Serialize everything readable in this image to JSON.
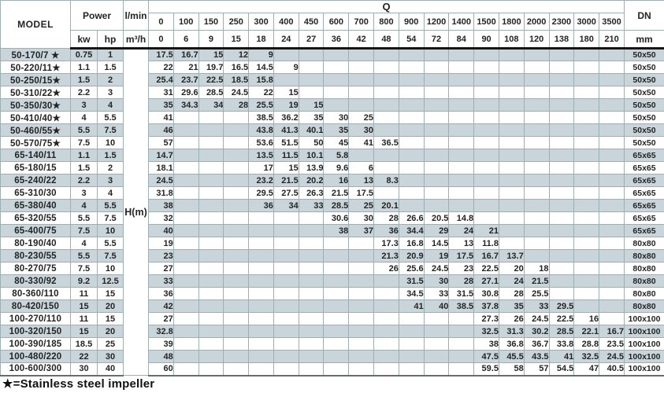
{
  "header": {
    "model": "MODEL",
    "power": "Power",
    "kw": "kw",
    "hp": "hp",
    "lmin": "l/min",
    "m3h": "m³/h",
    "q": "Q",
    "dn": "DN",
    "mm": "mm",
    "hm": "H(m)",
    "lmin_cols": [
      "0",
      "100",
      "150",
      "250",
      "300",
      "400",
      "450",
      "600",
      "700",
      "800",
      "900",
      "1200",
      "1400",
      "1500",
      "1800",
      "2000",
      "2300",
      "3000",
      "3500"
    ],
    "m3h_cols": [
      "0",
      "6",
      "9",
      "15",
      "18",
      "24",
      "27",
      "36",
      "42",
      "48",
      "54",
      "72",
      "84",
      "90",
      "108",
      "120",
      "138",
      "180",
      "210"
    ]
  },
  "rows": [
    {
      "model": "50-170/7 ★",
      "kw": "0.75",
      "hp": "1",
      "dn": "50x50",
      "values": [
        "17.5",
        "16.7",
        "15",
        "12",
        "9",
        "",
        "",
        "",
        "",
        "",
        "",
        "",
        "",
        "",
        "",
        "",
        "",
        "",
        ""
      ]
    },
    {
      "model": "50-220/11★",
      "kw": "1.1",
      "hp": "1.5",
      "dn": "50x50",
      "values": [
        "22",
        "21",
        "19.7",
        "16.5",
        "14.5",
        "9",
        "",
        "",
        "",
        "",
        "",
        "",
        "",
        "",
        "",
        "",
        "",
        "",
        ""
      ]
    },
    {
      "model": "50-250/15★",
      "kw": "1.5",
      "hp": "2",
      "dn": "50x50",
      "values": [
        "25.4",
        "23.7",
        "22.5",
        "18.5",
        "15.8",
        "",
        "",
        "",
        "",
        "",
        "",
        "",
        "",
        "",
        "",
        "",
        "",
        "",
        ""
      ]
    },
    {
      "model": "50-310/22★",
      "kw": "2.2",
      "hp": "3",
      "dn": "50x50",
      "values": [
        "31",
        "29.6",
        "28.5",
        "24.5",
        "22",
        "15",
        "",
        "",
        "",
        "",
        "",
        "",
        "",
        "",
        "",
        "",
        "",
        "",
        ""
      ]
    },
    {
      "model": "50-350/30★",
      "kw": "3",
      "hp": "4",
      "dn": "50x50",
      "values": [
        "35",
        "34.3",
        "34",
        "28",
        "25.5",
        "19",
        "15",
        "",
        "",
        "",
        "",
        "",
        "",
        "",
        "",
        "",
        "",
        "",
        ""
      ]
    },
    {
      "model": "50-410/40★",
      "kw": "4",
      "hp": "5.5",
      "dn": "50x50",
      "values": [
        "41",
        "",
        "",
        "",
        "38.5",
        "36.2",
        "35",
        "30",
        "25",
        "",
        "",
        "",
        "",
        "",
        "",
        "",
        "",
        "",
        ""
      ]
    },
    {
      "model": "50-460/55★",
      "kw": "5.5",
      "hp": "7.5",
      "dn": "50x50",
      "values": [
        "46",
        "",
        "",
        "",
        "43.8",
        "41.3",
        "40.1",
        "35",
        "30",
        "",
        "",
        "",
        "",
        "",
        "",
        "",
        "",
        "",
        ""
      ]
    },
    {
      "model": "50-570/75★",
      "kw": "7.5",
      "hp": "10",
      "dn": "50x50",
      "values": [
        "57",
        "",
        "",
        "",
        "53.6",
        "51.5",
        "50",
        "45",
        "41",
        "36.5",
        "",
        "",
        "",
        "",
        "",
        "",
        "",
        "",
        ""
      ]
    },
    {
      "model": "65-140/11",
      "kw": "1.1",
      "hp": "1.5",
      "dn": "65x65",
      "values": [
        "14.7",
        "",
        "",
        "",
        "13.5",
        "11.5",
        "10.1",
        "5.8",
        "",
        "",
        "",
        "",
        "",
        "",
        "",
        "",
        "",
        "",
        ""
      ]
    },
    {
      "model": "65-180/15",
      "kw": "1.5",
      "hp": "2",
      "dn": "65x65",
      "values": [
        "18.1",
        "",
        "",
        "",
        "17",
        "15",
        "13.9",
        "9.6",
        "6",
        "",
        "",
        "",
        "",
        "",
        "",
        "",
        "",
        "",
        ""
      ]
    },
    {
      "model": "65-240/22",
      "kw": "2.2",
      "hp": "3",
      "dn": "65x65",
      "values": [
        "24.5",
        "",
        "",
        "",
        "23.2",
        "21.5",
        "20.2",
        "16",
        "13",
        "8.3",
        "",
        "",
        "",
        "",
        "",
        "",
        "",
        "",
        ""
      ]
    },
    {
      "model": "65-310/30",
      "kw": "3",
      "hp": "4",
      "dn": "65x65",
      "values": [
        "31.8",
        "",
        "",
        "",
        "29.5",
        "27.5",
        "26.3",
        "21.5",
        "17.5",
        "",
        "",
        "",
        "",
        "",
        "",
        "",
        "",
        "",
        ""
      ]
    },
    {
      "model": "65-380/40",
      "kw": "4",
      "hp": "5.5",
      "dn": "65x65",
      "values": [
        "38",
        "",
        "",
        "",
        "36",
        "34",
        "33",
        "28.5",
        "25",
        "20.1",
        "",
        "",
        "",
        "",
        "",
        "",
        "",
        "",
        ""
      ]
    },
    {
      "model": "65-320/55",
      "kw": "5.5",
      "hp": "7.5",
      "dn": "65x65",
      "values": [
        "32",
        "",
        "",
        "",
        "",
        "",
        "",
        "30.6",
        "30",
        "28",
        "26.6",
        "20.5",
        "14.8",
        "",
        "",
        "",
        "",
        "",
        ""
      ]
    },
    {
      "model": "65-400/75",
      "kw": "7.5",
      "hp": "10",
      "dn": "65x65",
      "values": [
        "40",
        "",
        "",
        "",
        "",
        "",
        "",
        "38",
        "37",
        "36",
        "34.4",
        "29",
        "24",
        "21",
        "",
        "",
        "",
        "",
        ""
      ]
    },
    {
      "model": "80-190/40",
      "kw": "4",
      "hp": "5.5",
      "dn": "80x80",
      "values": [
        "19",
        "",
        "",
        "",
        "",
        "",
        "",
        "",
        "",
        "17.3",
        "16.8",
        "14.5",
        "13",
        "11.8",
        "",
        "",
        "",
        "",
        ""
      ]
    },
    {
      "model": "80-230/55",
      "kw": "5.5",
      "hp": "7.5",
      "dn": "80x80",
      "values": [
        "23",
        "",
        "",
        "",
        "",
        "",
        "",
        "",
        "",
        "21.3",
        "20.9",
        "19",
        "17.5",
        "16.7",
        "13.7",
        "",
        "",
        "",
        ""
      ]
    },
    {
      "model": "80-270/75",
      "kw": "7.5",
      "hp": "10",
      "dn": "80x80",
      "values": [
        "27",
        "",
        "",
        "",
        "",
        "",
        "",
        "",
        "",
        "26",
        "25.6",
        "24.5",
        "23",
        "22.5",
        "20",
        "18",
        "",
        "",
        ""
      ]
    },
    {
      "model": "80-330/92",
      "kw": "9.2",
      "hp": "12.5",
      "dn": "80x80",
      "values": [
        "33",
        "",
        "",
        "",
        "",
        "",
        "",
        "",
        "",
        "",
        "31.5",
        "30",
        "28",
        "27.1",
        "24",
        "21.5",
        "",
        "",
        ""
      ]
    },
    {
      "model": "80-360/110",
      "kw": "11",
      "hp": "15",
      "dn": "80x80",
      "values": [
        "36",
        "",
        "",
        "",
        "",
        "",
        "",
        "",
        "",
        "",
        "34.5",
        "33",
        "31.5",
        "30.8",
        "28",
        "25.5",
        "",
        "",
        ""
      ]
    },
    {
      "model": "80-420/150",
      "kw": "15",
      "hp": "20",
      "dn": "80x80",
      "values": [
        "42",
        "",
        "",
        "",
        "",
        "",
        "",
        "",
        "",
        "",
        "41",
        "40",
        "38.5",
        "37.8",
        "35",
        "33",
        "29.5",
        "",
        ""
      ]
    },
    {
      "model": "100-270/110",
      "kw": "11",
      "hp": "15",
      "dn": "100x100",
      "values": [
        "27",
        "",
        "",
        "",
        "",
        "",
        "",
        "",
        "",
        "",
        "",
        "",
        "",
        "27.3",
        "26",
        "24.5",
        "22.5",
        "16",
        ""
      ]
    },
    {
      "model": "100-320/150",
      "kw": "15",
      "hp": "20",
      "dn": "100x100",
      "values": [
        "32.8",
        "",
        "",
        "",
        "",
        "",
        "",
        "",
        "",
        "",
        "",
        "",
        "",
        "32.5",
        "31.3",
        "30.2",
        "28.5",
        "22.1",
        "16.7"
      ]
    },
    {
      "model": "100-390/185",
      "kw": "18.5",
      "hp": "25",
      "dn": "100x100",
      "values": [
        "39",
        "",
        "",
        "",
        "",
        "",
        "",
        "",
        "",
        "",
        "",
        "",
        "",
        "38",
        "36.8",
        "36.7",
        "33.8",
        "28.8",
        "23.5"
      ]
    },
    {
      "model": "100-480/220",
      "kw": "22",
      "hp": "30",
      "dn": "100x100",
      "values": [
        "48",
        "",
        "",
        "",
        "",
        "",
        "",
        "",
        "",
        "",
        "",
        "",
        "",
        "47.5",
        "45.5",
        "43.5",
        "41",
        "32.5",
        "24.5"
      ]
    },
    {
      "model": "100-600/300",
      "kw": "30",
      "hp": "40",
      "dn": "100x100",
      "values": [
        "60",
        "",
        "",
        "",
        "",
        "",
        "",
        "",
        "",
        "",
        "",
        "",
        "",
        "59.5",
        "58",
        "57",
        "54.5",
        "47",
        "40.5"
      ]
    }
  ],
  "footnote": "★=Stainless steel impeller",
  "colors": {
    "row_shade": "#c8d6dc",
    "grid_line": "#9daeb5",
    "header_line": "#151515",
    "text": "#242424"
  }
}
